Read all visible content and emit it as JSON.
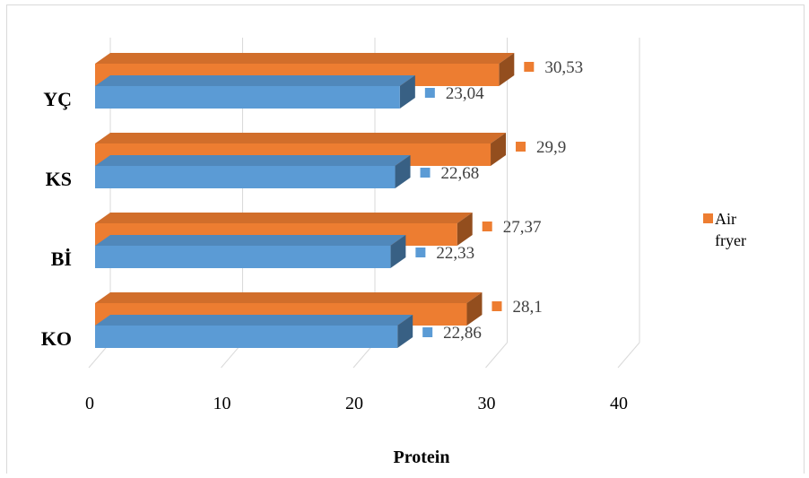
{
  "chart_data": {
    "type": "bar",
    "orientation": "horizontal",
    "style": "3d-clustered",
    "categories": [
      "KO",
      "Bİ",
      "KS",
      "YÇ"
    ],
    "series": [
      {
        "name": "",
        "color": "#5b9bd5",
        "values": [
          22.86,
          22.33,
          22.68,
          23.04
        ],
        "value_labels": [
          "22,86",
          "22,33",
          "22,68",
          "23,04"
        ]
      },
      {
        "name": "Air fryer",
        "color": "#ed7d31",
        "values": [
          28.1,
          27.37,
          29.9,
          30.53
        ],
        "value_labels": [
          "28,1",
          "27,37",
          "29,9",
          "30,53"
        ]
      }
    ],
    "x_ticks": [
      "0",
      "10",
      "20",
      "30",
      "40"
    ],
    "xlim": [
      0,
      40
    ],
    "xlabel": "Protein",
    "ylabel": "",
    "title": "",
    "legend": {
      "position": "right",
      "entries": [
        "Air fryer"
      ]
    },
    "grid": true
  }
}
